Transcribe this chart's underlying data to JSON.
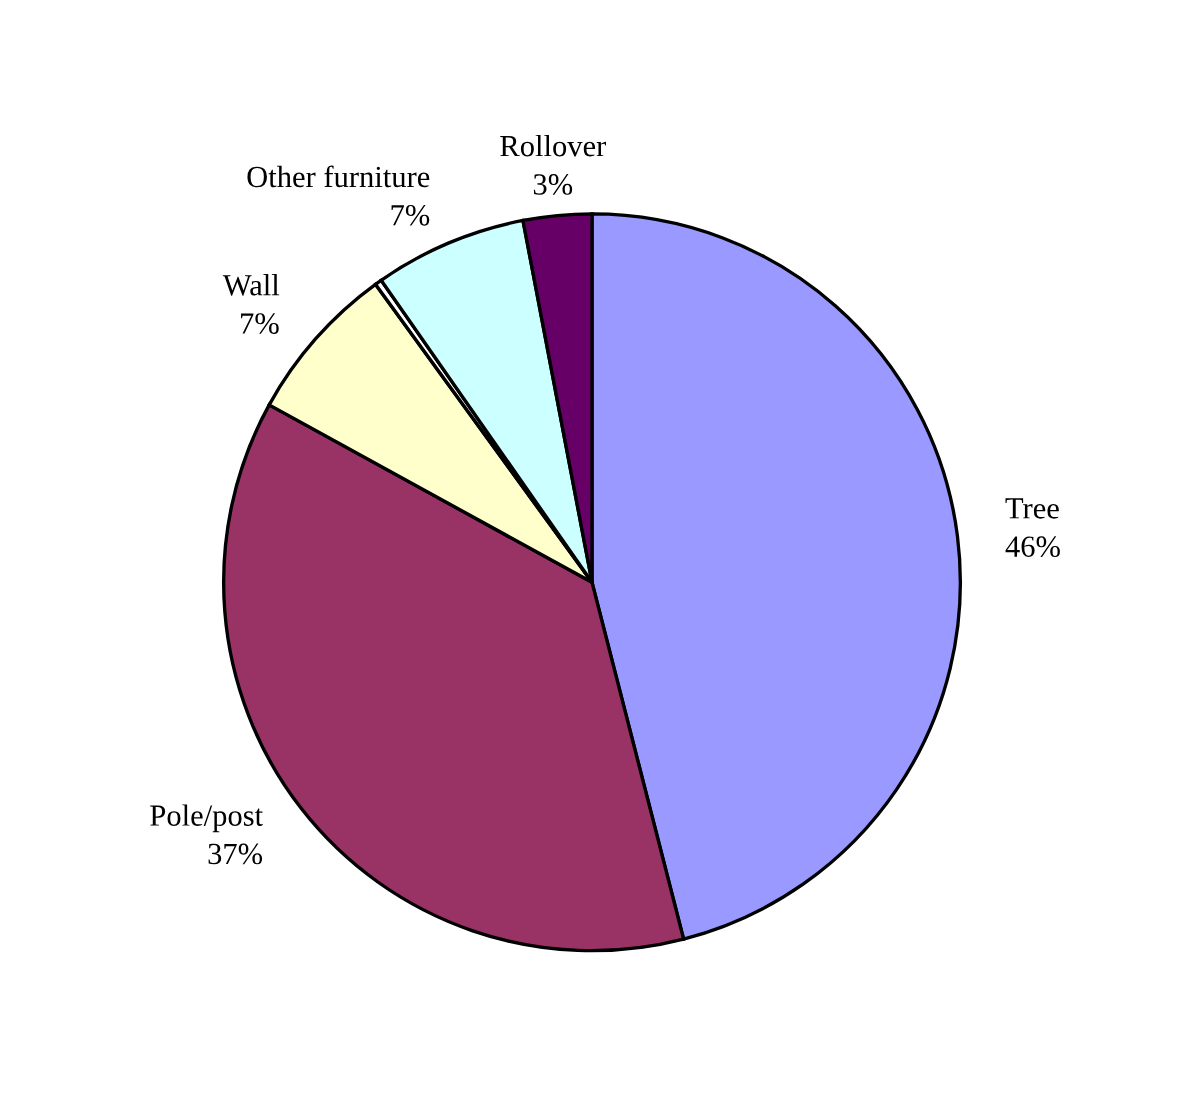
{
  "chart_data": {
    "type": "pie",
    "categories": [
      "Tree",
      "Pole/post",
      "Wall",
      null,
      "Other furniture",
      "Rollover"
    ],
    "values": [
      46,
      37,
      7,
      0.3,
      6.7,
      3
    ],
    "value_labels": [
      "46%",
      "37%",
      "7%",
      null,
      "7%",
      "3%"
    ],
    "colors": [
      "#9999ff",
      "#993366",
      "#ffffcc",
      "#ffffff",
      "#ccffff",
      "#660066"
    ],
    "legend": false
  }
}
